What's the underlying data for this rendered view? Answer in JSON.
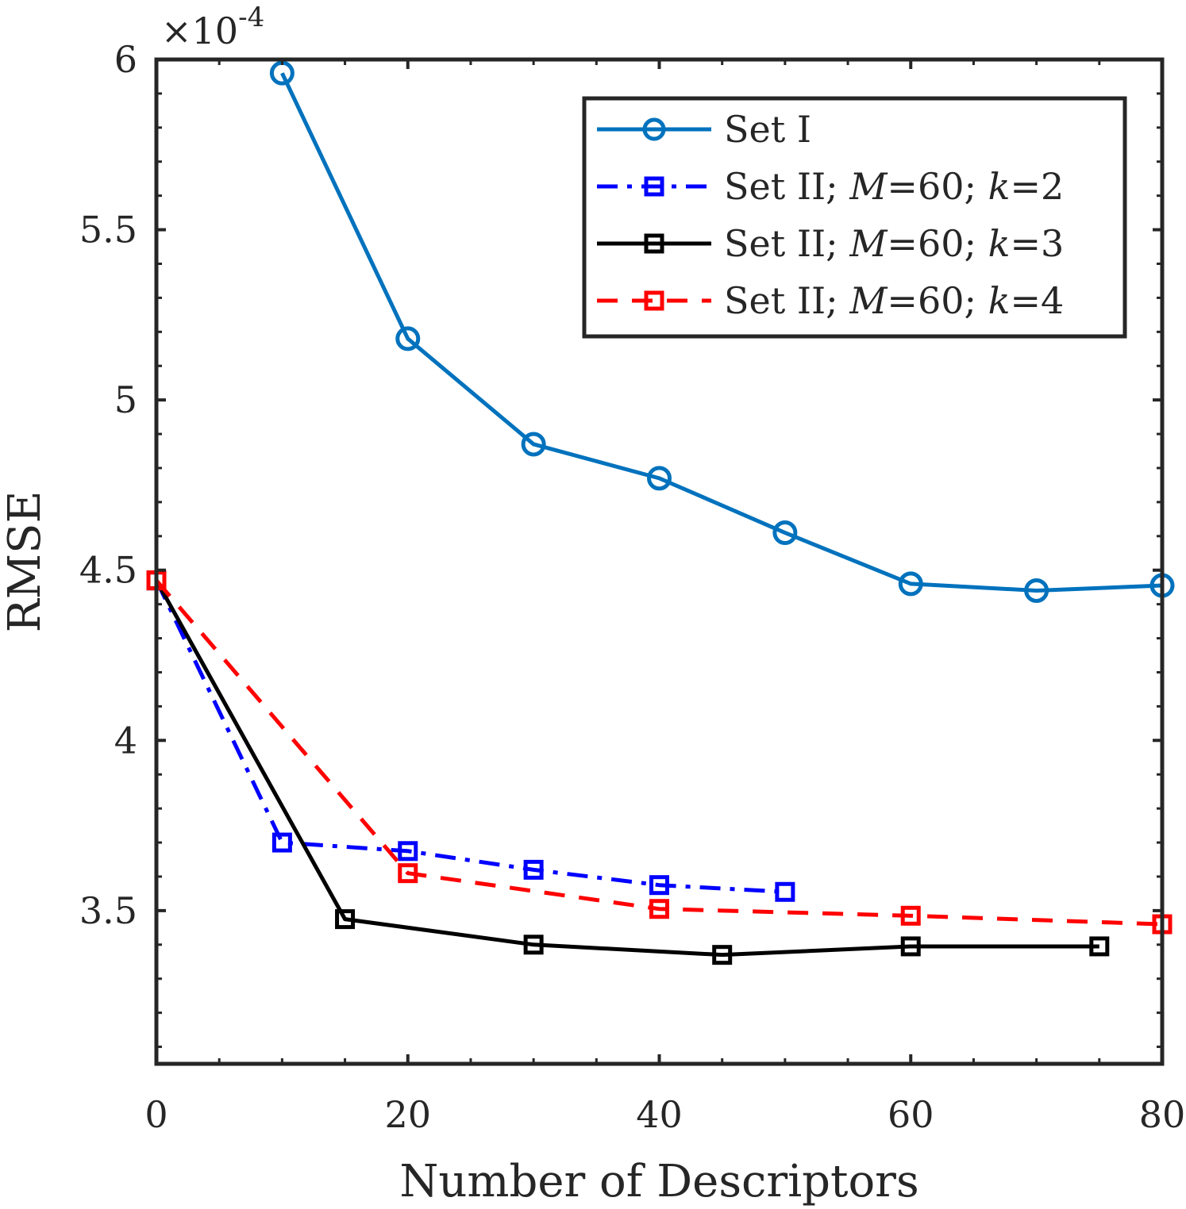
{
  "chart_data": {
    "type": "line",
    "xlabel": "Number of Descriptors",
    "ylabel": "RMSE",
    "y_exponent_multiplier": "×10",
    "y_exponent": "-4",
    "xlim": [
      0,
      80
    ],
    "ylim": [
      3.05,
      6.0
    ],
    "x_ticks": [
      0,
      20,
      40,
      60,
      80
    ],
    "x_tick_labels": [
      "0",
      "20",
      "40",
      "60",
      "80"
    ],
    "y_ticks": [
      3.5,
      4,
      4.5,
      5,
      5.5,
      6
    ],
    "y_tick_labels": [
      "3.5",
      "4",
      "4.5",
      "5",
      "5.5",
      "6"
    ],
    "grid": false,
    "legend_position": "top-right",
    "series": [
      {
        "name": "Set I",
        "legend_parts": [
          [
            "Set I",
            false
          ]
        ],
        "color": "#0072BD",
        "dash": "solid",
        "marker": "circle",
        "x": [
          10,
          20,
          30,
          40,
          50,
          60,
          70,
          80
        ],
        "y": [
          5.96,
          5.18,
          4.87,
          4.77,
          4.61,
          4.46,
          4.44,
          4.455
        ]
      },
      {
        "name": "Set II; M=60; k=2",
        "legend_parts": [
          [
            "Set II; ",
            false
          ],
          [
            "M",
            true
          ],
          [
            "=60; ",
            false
          ],
          [
            "k",
            true
          ],
          [
            "=2",
            false
          ]
        ],
        "color": "#0000FF",
        "dash": "dashdot",
        "marker": "square",
        "x": [
          0,
          10,
          20,
          30,
          40,
          50
        ],
        "y": [
          4.47,
          3.7,
          3.675,
          3.62,
          3.575,
          3.555
        ]
      },
      {
        "name": "Set II; M=60; k=3",
        "legend_parts": [
          [
            "Set II; ",
            false
          ],
          [
            "M",
            true
          ],
          [
            "=60; ",
            false
          ],
          [
            "k",
            true
          ],
          [
            "=3",
            false
          ]
        ],
        "color": "#000000",
        "dash": "solid",
        "marker": "square",
        "x": [
          0,
          15,
          30,
          45,
          60,
          75
        ],
        "y": [
          4.47,
          3.475,
          3.4,
          3.37,
          3.395,
          3.395
        ]
      },
      {
        "name": "Set II; M=60; k=4",
        "legend_parts": [
          [
            "Set II; ",
            false
          ],
          [
            "M",
            true
          ],
          [
            "=60; ",
            false
          ],
          [
            "k",
            true
          ],
          [
            "=4",
            false
          ]
        ],
        "color": "#FF0000",
        "dash": "dashed",
        "marker": "square",
        "x": [
          0,
          20,
          40,
          60,
          80
        ],
        "y": [
          4.47,
          3.61,
          3.505,
          3.485,
          3.46
        ]
      }
    ]
  }
}
